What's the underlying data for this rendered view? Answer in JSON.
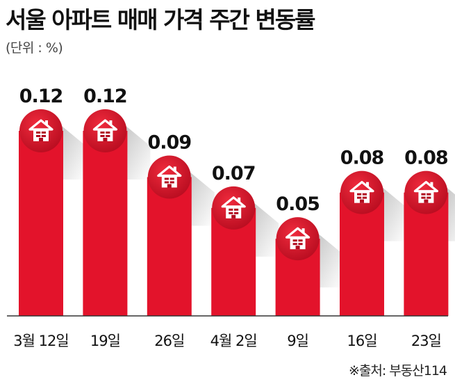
{
  "title": "서울 아파트 매매 가격 주간 변동률",
  "unit": "(단위 : %)",
  "source": "※출처: 부동산114",
  "colors": {
    "bar": "#e3132b",
    "bar_dark": "#b10c1f",
    "icon": "#ffffff",
    "axis": "#333333"
  },
  "icon_name": "house-icon",
  "chart_data": {
    "type": "bar",
    "title": "서울 아파트 매매 가격 주간 변동률",
    "xlabel": "",
    "ylabel": "",
    "unit": "%",
    "categories": [
      "3월 12일",
      "19일",
      "26일",
      "4월 2일",
      "9일",
      "16일",
      "23일"
    ],
    "values": [
      0.12,
      0.12,
      0.09,
      0.07,
      0.05,
      0.08,
      0.08
    ],
    "value_labels": [
      "0.12",
      "0.12",
      "0.09",
      "0.07",
      "0.05",
      "0.08",
      "0.08"
    ],
    "ylim": [
      0,
      0.12
    ],
    "grid": false,
    "legend": "none"
  }
}
